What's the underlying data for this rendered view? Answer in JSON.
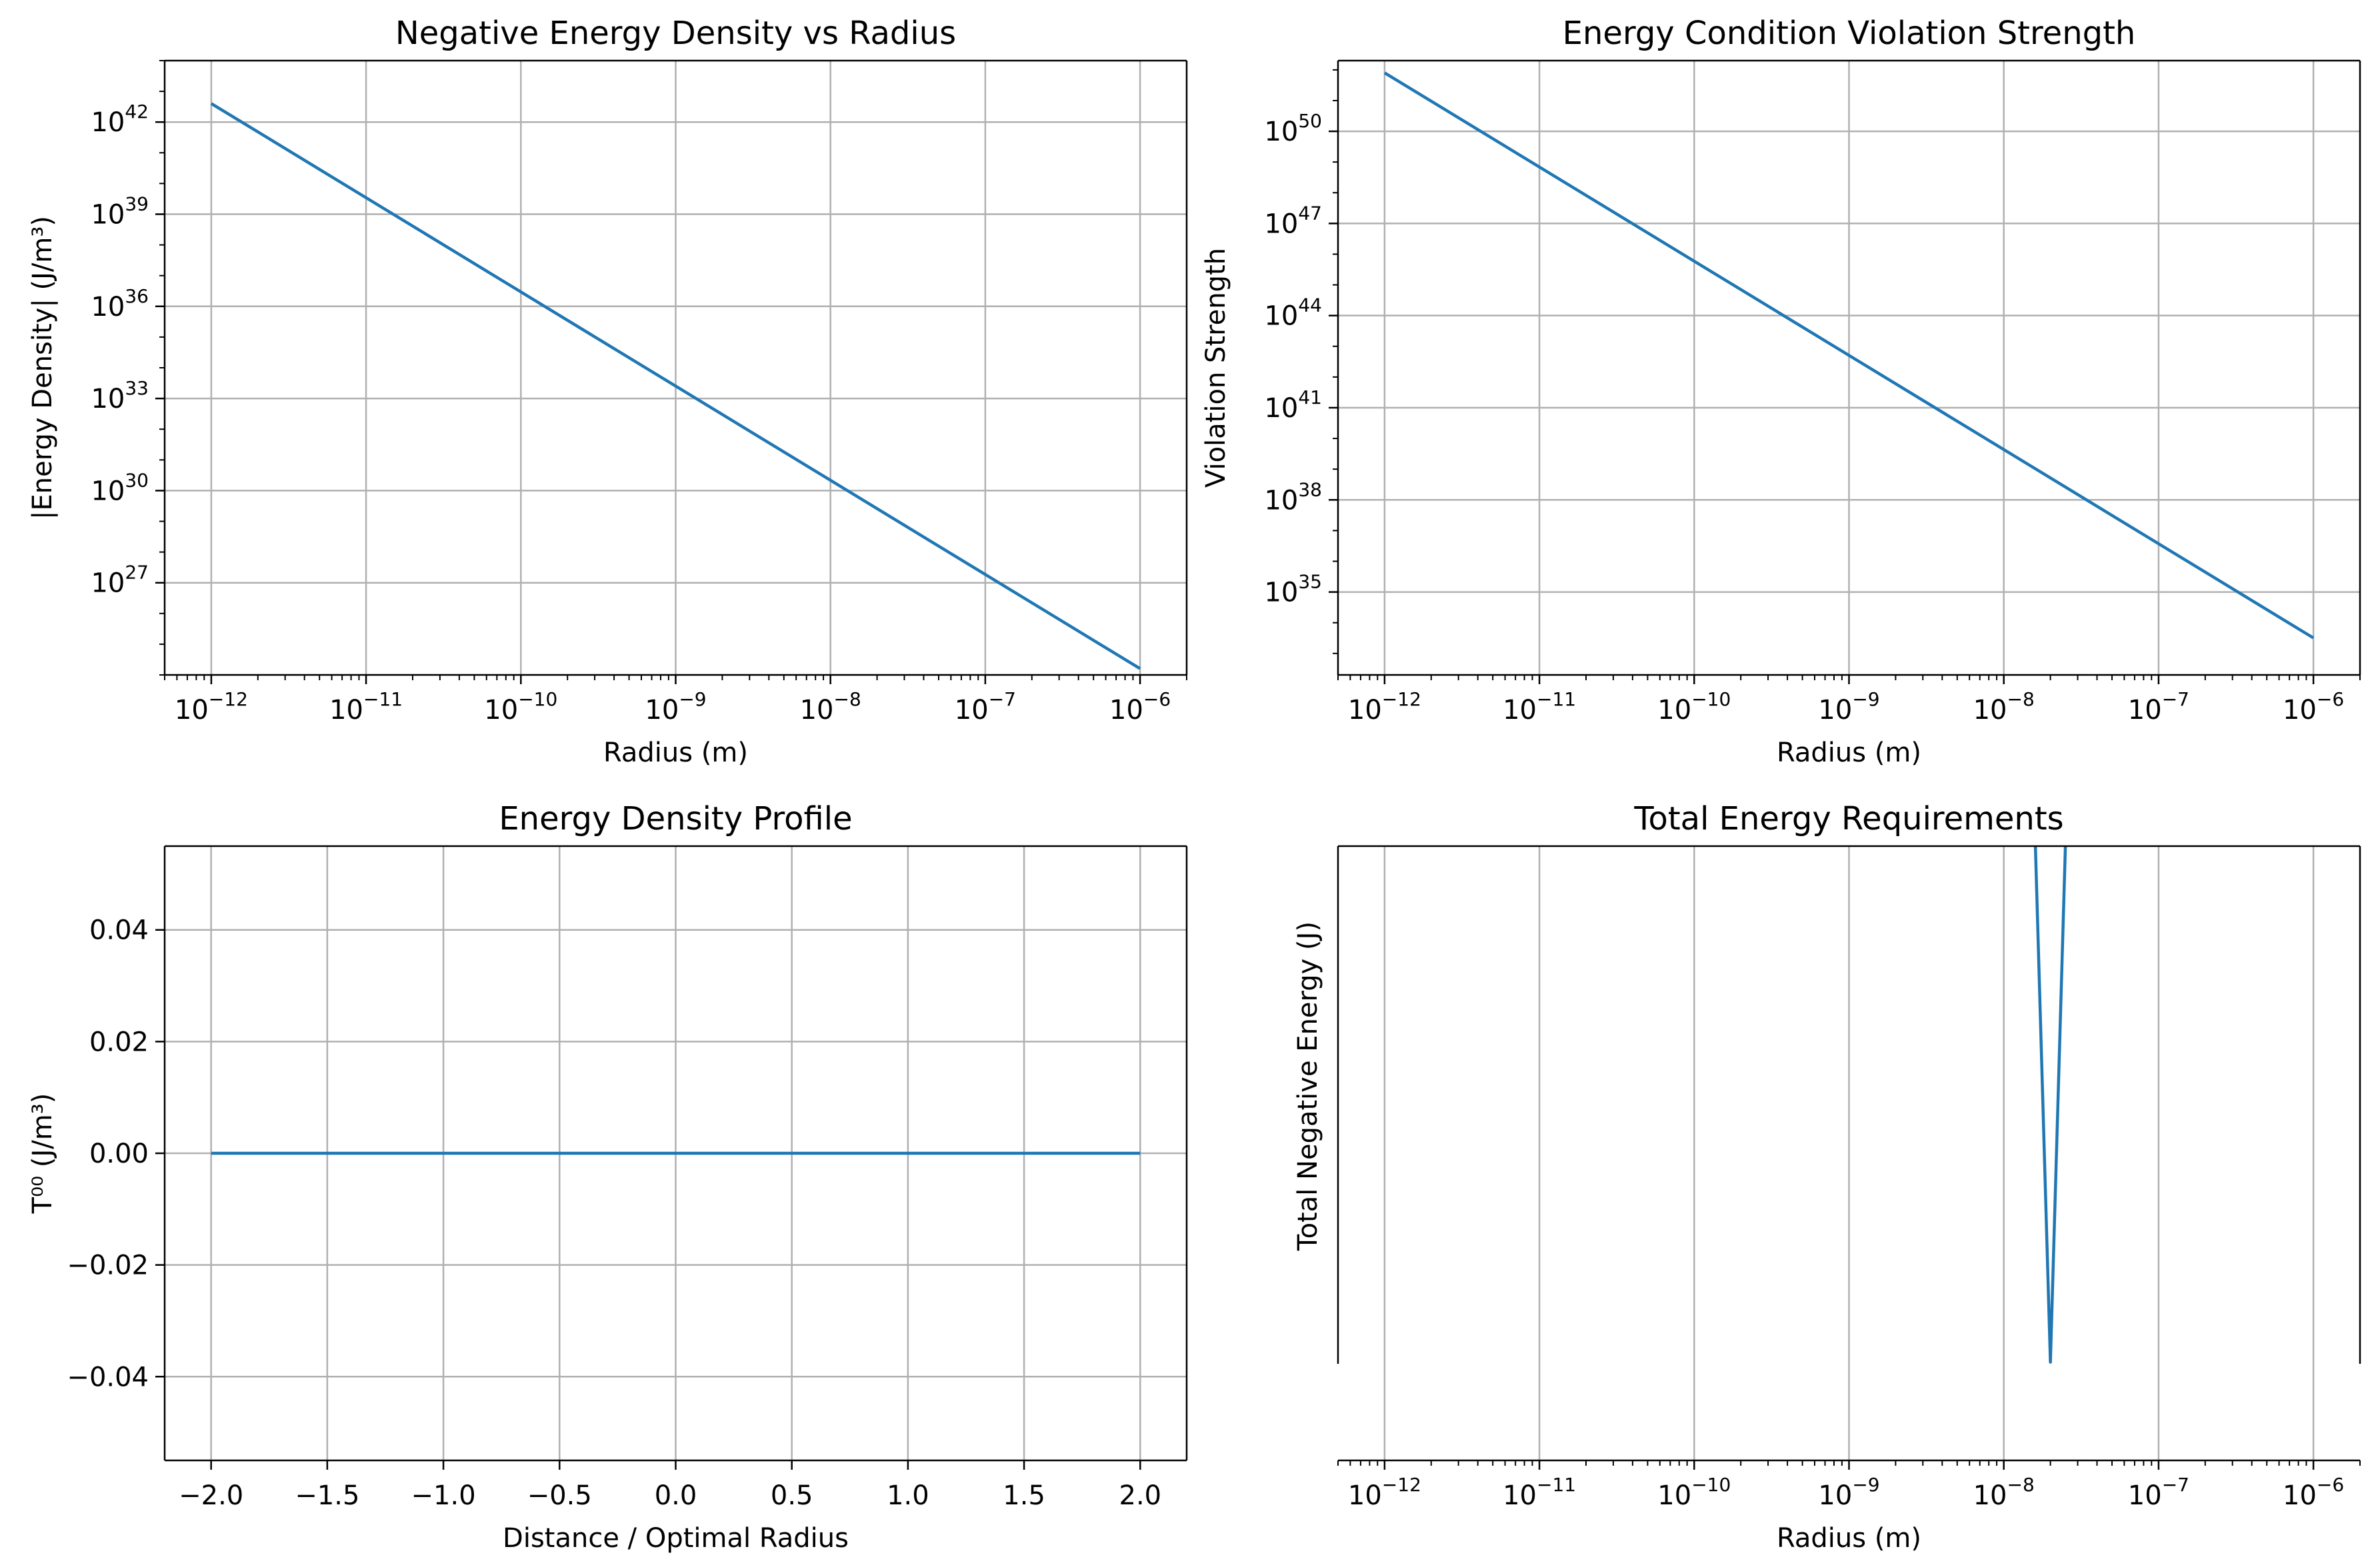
{
  "line_color": "#1f77b4",
  "grid_color": "#b0b0b0",
  "chart_data": [
    {
      "type": "line",
      "title": "Negative Energy Density vs Radius",
      "xlabel": "Radius (m)",
      "ylabel": "|Energy Density| (J/m³)",
      "xscale": "log",
      "yscale": "log",
      "xlim": [
        5e-13,
        2e-06
      ],
      "ylim": [
        1e+24,
        1e+44
      ],
      "grid": true,
      "legend": "none",
      "xticks": [
        {
          "value": 1e-12,
          "base": "10",
          "exp": "−12"
        },
        {
          "value": 1e-11,
          "base": "10",
          "exp": "−11"
        },
        {
          "value": 1e-10,
          "base": "10",
          "exp": "−10"
        },
        {
          "value": 1e-09,
          "base": "10",
          "exp": "−9"
        },
        {
          "value": 1e-08,
          "base": "10",
          "exp": "−8"
        },
        {
          "value": 1e-07,
          "base": "10",
          "exp": "−7"
        },
        {
          "value": 1e-06,
          "base": "10",
          "exp": "−6"
        }
      ],
      "yticks": [
        {
          "value": 1e+27,
          "base": "10",
          "exp": "27"
        },
        {
          "value": 1e+30,
          "base": "10",
          "exp": "30"
        },
        {
          "value": 1e+33,
          "base": "10",
          "exp": "33"
        },
        {
          "value": 1e+36,
          "base": "10",
          "exp": "36"
        },
        {
          "value": 1e+39,
          "base": "10",
          "exp": "39"
        },
        {
          "value": 1e+42,
          "base": "10",
          "exp": "42"
        }
      ],
      "series": [
        {
          "x": [
            1e-12,
            1e-06
          ],
          "y": [
            4e+42,
            1.6e+24
          ]
        }
      ]
    },
    {
      "type": "line",
      "title": "Energy Condition Violation Strength",
      "xlabel": "Radius (m)",
      "ylabel": "Violation Strength",
      "xscale": "log",
      "yscale": "log",
      "xlim": [
        5e-13,
        2e-06
      ],
      "ylim": [
        2e+32,
        2e+52
      ],
      "grid": true,
      "legend": "none",
      "xticks": [
        {
          "value": 1e-12,
          "base": "10",
          "exp": "−12"
        },
        {
          "value": 1e-11,
          "base": "10",
          "exp": "−11"
        },
        {
          "value": 1e-10,
          "base": "10",
          "exp": "−10"
        },
        {
          "value": 1e-09,
          "base": "10",
          "exp": "−9"
        },
        {
          "value": 1e-08,
          "base": "10",
          "exp": "−8"
        },
        {
          "value": 1e-07,
          "base": "10",
          "exp": "−7"
        },
        {
          "value": 1e-06,
          "base": "10",
          "exp": "−6"
        }
      ],
      "yticks": [
        {
          "value": 1e+35,
          "base": "10",
          "exp": "35"
        },
        {
          "value": 1e+38,
          "base": "10",
          "exp": "38"
        },
        {
          "value": 1e+41,
          "base": "10",
          "exp": "41"
        },
        {
          "value": 1e+44,
          "base": "10",
          "exp": "44"
        },
        {
          "value": 1e+47,
          "base": "10",
          "exp": "47"
        },
        {
          "value": 1e+50,
          "base": "10",
          "exp": "50"
        }
      ],
      "series": [
        {
          "x": [
            1e-12,
            1e-06
          ],
          "y": [
            8e+51,
            3.2e+33
          ]
        }
      ]
    },
    {
      "type": "line",
      "title": "Energy Density Profile",
      "xlabel": "Distance / Optimal Radius",
      "ylabel": "T⁰⁰ (J/m³)",
      "xscale": "linear",
      "yscale": "linear",
      "xlim": [
        -2.2,
        2.2
      ],
      "ylim": [
        -0.055,
        0.055
      ],
      "grid": true,
      "legend": "none",
      "xticks": [
        {
          "value": -2.0,
          "label": "−2.0"
        },
        {
          "value": -1.5,
          "label": "−1.5"
        },
        {
          "value": -1.0,
          "label": "−1.0"
        },
        {
          "value": -0.5,
          "label": "−0.5"
        },
        {
          "value": 0.0,
          "label": "0.0"
        },
        {
          "value": 0.5,
          "label": "0.5"
        },
        {
          "value": 1.0,
          "label": "1.0"
        },
        {
          "value": 1.5,
          "label": "1.5"
        },
        {
          "value": 2.0,
          "label": "2.0"
        }
      ],
      "yticks": [
        {
          "value": -0.04,
          "label": "−0.04"
        },
        {
          "value": -0.02,
          "label": "−0.02"
        },
        {
          "value": 0.0,
          "label": "0.00"
        },
        {
          "value": 0.02,
          "label": "0.02"
        },
        {
          "value": 0.04,
          "label": "0.04"
        }
      ],
      "series": [
        {
          "x": [
            -2.0,
            2.0
          ],
          "y": [
            0,
            0
          ]
        }
      ]
    },
    {
      "type": "line",
      "title": "Total Energy Requirements",
      "xlabel": "Radius (m)",
      "ylabel": "Total Negative Energy (J)",
      "xscale": "log",
      "yscale": "linear",
      "xlim": [
        5e-13,
        2e-06
      ],
      "ylim": [
        0,
        1
      ],
      "grid": true,
      "legend": "none",
      "xticks": [
        {
          "value": 1e-12,
          "base": "10",
          "exp": "−12"
        },
        {
          "value": 1e-11,
          "base": "10",
          "exp": "−11"
        },
        {
          "value": 1e-10,
          "base": "10",
          "exp": "−10"
        },
        {
          "value": 1e-09,
          "base": "10",
          "exp": "−9"
        },
        {
          "value": 1e-08,
          "base": "10",
          "exp": "−8"
        },
        {
          "value": 1e-07,
          "base": "10",
          "exp": "−7"
        },
        {
          "value": 1e-06,
          "base": "10",
          "exp": "−6"
        }
      ],
      "yticks": [],
      "series": [
        {
          "x": [
            1.6e-08,
            2e-08,
            2.5e-08
          ],
          "y": [
            1.0,
            0.16,
            1.0
          ]
        }
      ]
    }
  ]
}
